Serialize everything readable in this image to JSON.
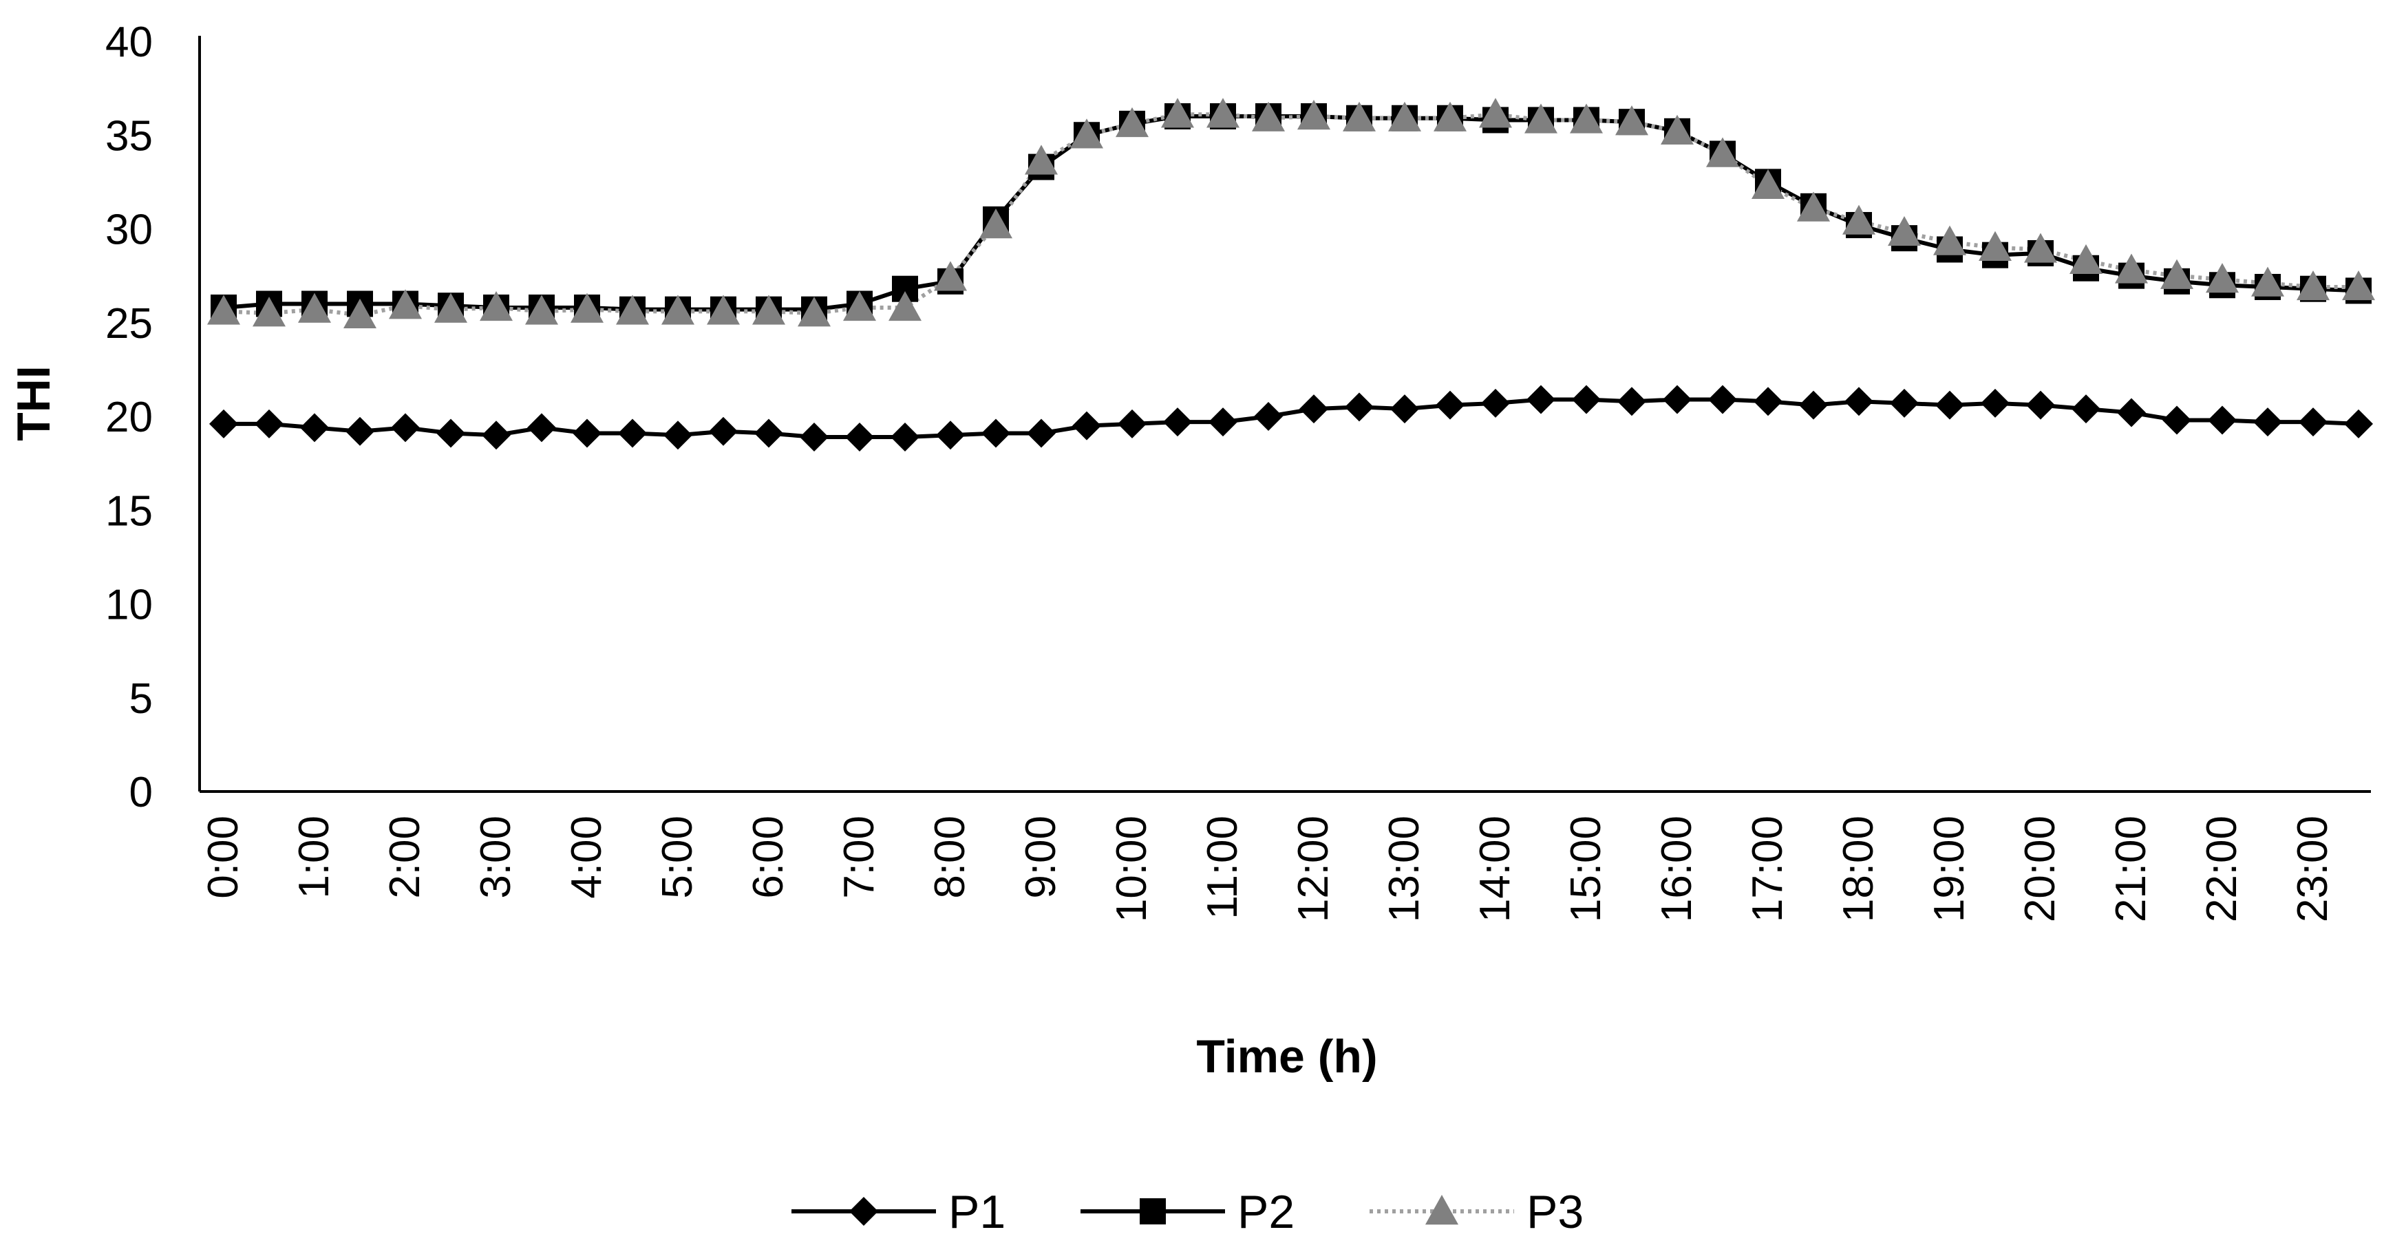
{
  "chart_data": {
    "type": "line",
    "title": "",
    "xlabel": "Time (h)",
    "ylabel": "THI",
    "ylim": [
      0,
      40
    ],
    "yticks": [
      0,
      5,
      10,
      15,
      20,
      25,
      30,
      35,
      40
    ],
    "x_tick_labels": [
      "0:00",
      "1:00",
      "2:00",
      "3:00",
      "4:00",
      "5:00",
      "6:00",
      "7:00",
      "8:00",
      "9:00",
      "10:00",
      "11:00",
      "12:00",
      "13:00",
      "14:00",
      "15:00",
      "16:00",
      "17:00",
      "18:00",
      "19:00",
      "20:00",
      "21:00",
      "22:00",
      "23:00"
    ],
    "x_hours": [
      0,
      0.5,
      1,
      1.5,
      2,
      2.5,
      3,
      3.5,
      4,
      4.5,
      5,
      5.5,
      6,
      6.5,
      7,
      7.5,
      8,
      8.5,
      9,
      9.5,
      10,
      10.5,
      11,
      11.5,
      12,
      12.5,
      13,
      13.5,
      14,
      14.5,
      15,
      15.5,
      16,
      16.5,
      17,
      17.5,
      18,
      18.5,
      19,
      19.5,
      20,
      20.5,
      21,
      21.5,
      22,
      22.5,
      23,
      23.5
    ],
    "legend_position": "bottom",
    "series": [
      {
        "name": "P1",
        "marker": "diamond",
        "color": "#000000",
        "line_style": "solid",
        "values": [
          19.6,
          19.6,
          19.4,
          19.2,
          19.4,
          19.1,
          19.0,
          19.4,
          19.1,
          19.1,
          19.0,
          19.2,
          19.1,
          18.9,
          18.9,
          18.9,
          19.0,
          19.1,
          19.1,
          19.5,
          19.6,
          19.7,
          19.7,
          20.0,
          20.4,
          20.5,
          20.4,
          20.6,
          20.7,
          20.9,
          20.9,
          20.8,
          20.9,
          20.9,
          20.8,
          20.6,
          20.8,
          20.7,
          20.6,
          20.7,
          20.6,
          20.4,
          20.2,
          19.8,
          19.8,
          19.7,
          19.7,
          19.6
        ]
      },
      {
        "name": "P2",
        "marker": "square",
        "color": "#000000",
        "line_style": "solid",
        "values": [
          25.8,
          26.0,
          26.0,
          26.0,
          26.0,
          25.9,
          25.8,
          25.8,
          25.8,
          25.7,
          25.7,
          25.7,
          25.7,
          25.7,
          26.0,
          26.8,
          27.2,
          30.5,
          33.3,
          35.0,
          35.6,
          36.0,
          36.0,
          36.0,
          36.0,
          35.9,
          35.9,
          35.9,
          35.8,
          35.8,
          35.8,
          35.7,
          35.2,
          34.0,
          32.5,
          31.2,
          30.2,
          29.5,
          28.9,
          28.6,
          28.7,
          27.9,
          27.5,
          27.2,
          27.0,
          26.9,
          26.8,
          26.7
        ]
      },
      {
        "name": "P3",
        "marker": "triangle",
        "color": "#808080",
        "line_style": "dotted",
        "values": [
          25.6,
          25.5,
          25.7,
          25.4,
          25.9,
          25.7,
          25.8,
          25.6,
          25.7,
          25.6,
          25.6,
          25.6,
          25.6,
          25.5,
          25.8,
          25.8,
          27.4,
          30.2,
          33.6,
          35.0,
          35.6,
          36.1,
          36.1,
          35.9,
          36.0,
          35.9,
          35.9,
          35.9,
          36.1,
          35.8,
          35.8,
          35.7,
          35.2,
          34.0,
          32.3,
          31.1,
          30.4,
          29.8,
          29.3,
          29.0,
          28.9,
          28.3,
          27.8,
          27.5,
          27.3,
          27.1,
          26.9,
          26.9
        ]
      }
    ]
  }
}
